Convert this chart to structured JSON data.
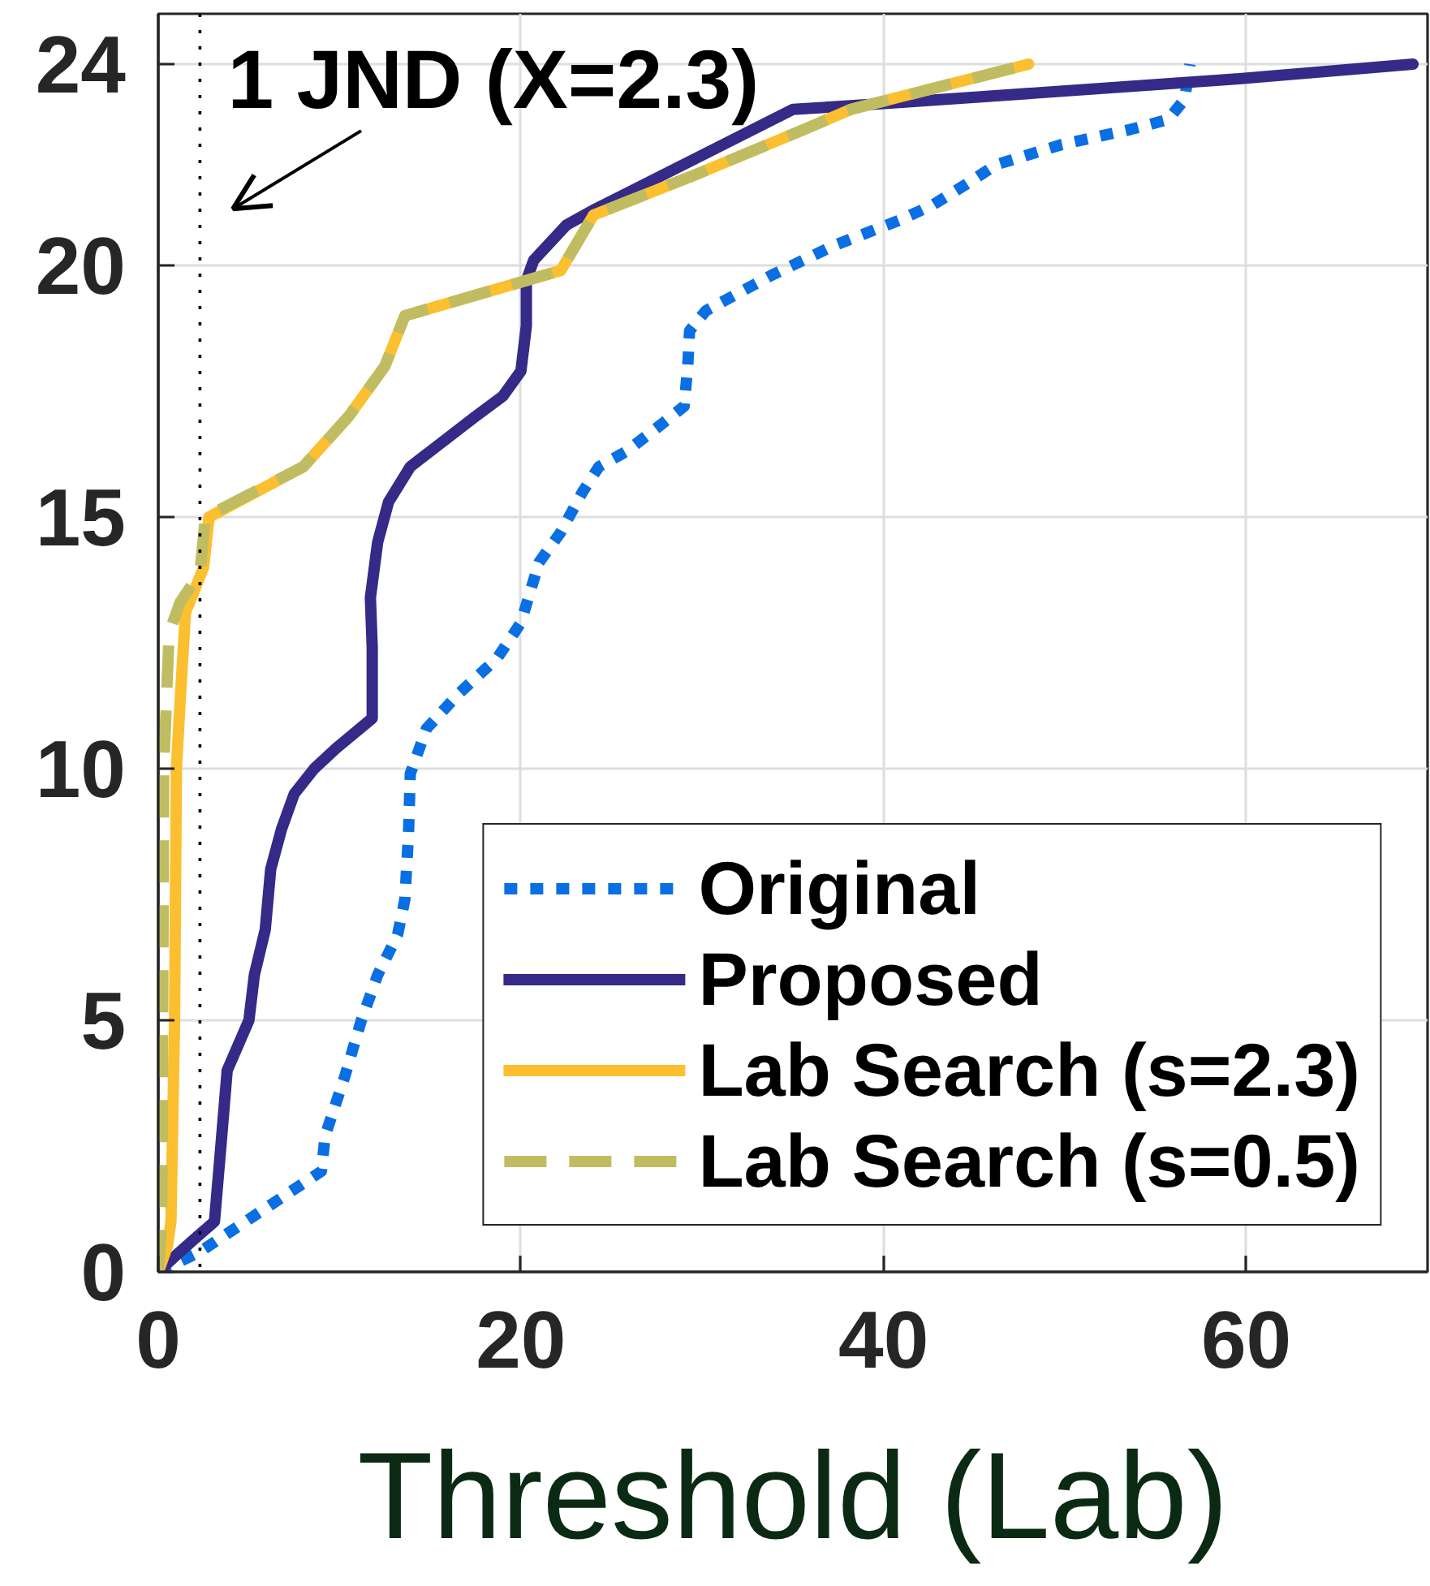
{
  "chart_data": {
    "type": "line",
    "xlabel": "Threshold (Lab)",
    "xlim": [
      0,
      70
    ],
    "xticks": [
      0,
      20,
      40,
      60
    ],
    "ylim": [
      0,
      25
    ],
    "yticks": [
      0,
      5,
      10,
      15,
      20,
      24
    ],
    "grid": true,
    "legend": "bottom right",
    "ref_lines": [
      {
        "axis": "x",
        "value": 2.3,
        "label": "1 JND (X=2.3)",
        "color": "#000000",
        "line_style": "dotted"
      }
    ],
    "series": [
      {
        "name": "Original",
        "color": "#0a6fe3",
        "line_style": "dotted",
        "x": [
          0,
          2.3,
          9.0,
          9.2,
          10.3,
          11.2,
          12.1,
          13.2,
          13.6,
          13.8,
          13.9,
          14.8,
          16.6,
          18.7,
          20.0,
          21.0,
          22.2,
          23.4,
          24.3,
          25.8,
          27.6,
          29.0,
          29.2,
          29.3,
          30.2,
          33.8,
          37.3,
          40.9,
          42.7,
          44.5,
          46.2,
          49.8,
          53.6,
          55.7,
          56.6,
          56.9
        ],
        "values": [
          0,
          0.4,
          2.0,
          2.7,
          3.9,
          5.0,
          5.9,
          6.7,
          7.4,
          8.7,
          9.9,
          10.8,
          11.5,
          12.2,
          12.9,
          14.1,
          14.7,
          15.5,
          16.0,
          16.3,
          16.8,
          17.2,
          18.0,
          18.7,
          19.1,
          19.8,
          20.4,
          20.9,
          21.2,
          21.6,
          22.0,
          22.4,
          22.7,
          22.9,
          23.3,
          24.0
        ]
      },
      {
        "name": "Proposed",
        "color": "#352a87",
        "line_style": "solid",
        "x": [
          0,
          1.2,
          2.3,
          3.1,
          3.5,
          3.8,
          5.0,
          5.3,
          5.9,
          6.2,
          6.8,
          7.5,
          8.6,
          9.8,
          11.8,
          11.8,
          11.7,
          12.1,
          12.7,
          13.9,
          15.7,
          17.5,
          19.0,
          20.0,
          20.3,
          20.3,
          20.7,
          22.5,
          24.0,
          35.0,
          39.4,
          59.3,
          69.2
        ],
        "values": [
          0,
          0.4,
          0.75,
          1.0,
          2.7,
          4.0,
          5.0,
          5.9,
          6.8,
          8.0,
          8.8,
          9.5,
          10.0,
          10.4,
          11.0,
          12.4,
          13.4,
          14.5,
          15.3,
          16.0,
          16.5,
          17.0,
          17.4,
          17.9,
          18.8,
          19.7,
          20.1,
          20.8,
          21.1,
          23.1,
          23.2,
          23.7,
          24.0
        ]
      },
      {
        "name": "Lab Search (s=2.3)",
        "color": "#fbbf2f",
        "line_style": "solid",
        "x": [
          0,
          0.5,
          0.7,
          0.9,
          1.0,
          1.2,
          1.5,
          2.5,
          2.8,
          8.0,
          10.5,
          12.5,
          13.6,
          22.2,
          24.0,
          29.6,
          35.6,
          38.2,
          48.0
        ],
        "values": [
          0,
          0.5,
          1.0,
          5.0,
          10.0,
          11.3,
          13.1,
          14.0,
          15.0,
          16.0,
          17.0,
          18.0,
          19.0,
          19.9,
          21.0,
          21.8,
          22.7,
          23.1,
          24.0
        ]
      },
      {
        "name": "Lab Search (s=0.5)",
        "color": "#c0bc62",
        "line_style": "dashed",
        "x": [
          0,
          0.2,
          0.3,
          0.6,
          1.2,
          2.3,
          2.6,
          8.0,
          10.5,
          12.5,
          13.6,
          22.2,
          24.0,
          29.6,
          35.6,
          38.2,
          48.0
        ],
        "values": [
          0,
          1.0,
          10.0,
          12.7,
          13.3,
          13.9,
          15.0,
          16.0,
          17.0,
          18.0,
          19.0,
          19.9,
          21.0,
          21.8,
          22.7,
          23.1,
          24.0
        ]
      }
    ]
  }
}
